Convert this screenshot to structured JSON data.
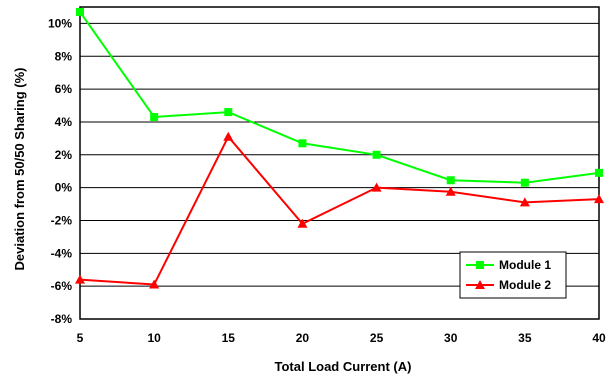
{
  "chart_data": {
    "type": "line",
    "x": [
      5,
      10,
      15,
      20,
      25,
      30,
      35,
      40
    ],
    "xticks": [
      "5",
      "10",
      "15",
      "20",
      "25",
      "30",
      "35",
      "40"
    ],
    "xlim": [
      5,
      40
    ],
    "ylim": [
      -8,
      11
    ],
    "yticks": [
      -8,
      -6,
      -4,
      -2,
      0,
      2,
      4,
      6,
      8,
      10
    ],
    "ytick_labels": [
      "-8%",
      "-6%",
      "-4%",
      "-2%",
      "0%",
      "2%",
      "4%",
      "6%",
      "8%",
      "10%"
    ],
    "xlabel": "Total Load Current (A)",
    "ylabel": "Deviation from 50/50 Sharing (%)",
    "grid": "horizontal",
    "legend_position": "bottom-right",
    "series": [
      {
        "name": "Module 1",
        "color": "#00ff00",
        "marker": "square",
        "values": [
          10.7,
          4.3,
          4.6,
          2.7,
          2.0,
          0.45,
          0.3,
          0.9
        ]
      },
      {
        "name": "Module 2",
        "color": "#ff0000",
        "marker": "triangle",
        "values": [
          -5.6,
          -5.9,
          3.1,
          -2.2,
          0.0,
          -0.25,
          -0.9,
          -0.7
        ]
      }
    ]
  }
}
